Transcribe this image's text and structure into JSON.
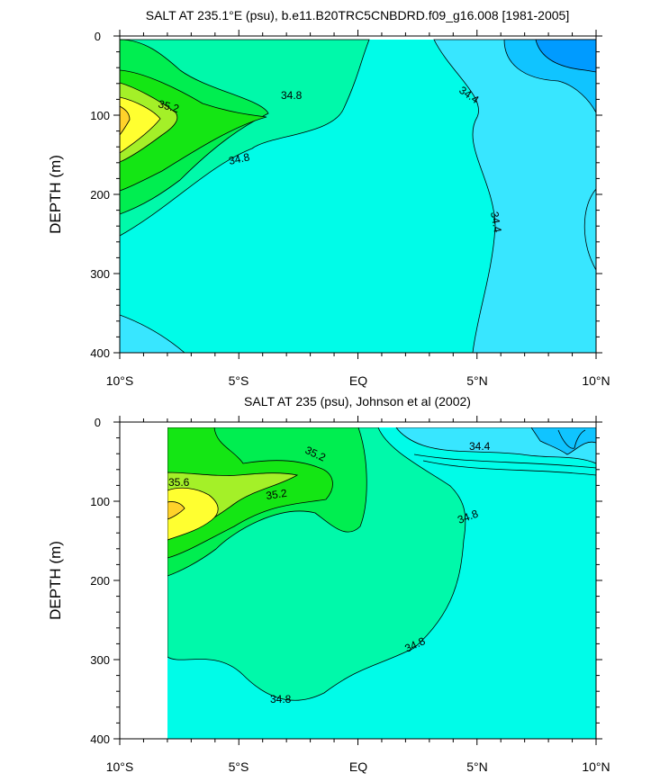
{
  "figure": {
    "panels": [
      {
        "title": "SALT AT 235.1°E (psu), b.e11.B20TRC5CNBDRD.f09_g16.008 [1981-2005]",
        "ylabel": "DEPTH (m)",
        "xticks": [
          "10°S",
          "5°S",
          "EQ",
          "5°N",
          "10°N"
        ],
        "yticks": [
          "0",
          "100",
          "200",
          "300",
          "400"
        ],
        "contour_labels": [
          "35.2",
          "34.8",
          "34.8",
          "34.4",
          "34.4"
        ]
      },
      {
        "title": "SALT AT 235 (psu), Johnson et al (2002)",
        "ylabel": "DEPTH (m)",
        "xticks": [
          "10°S",
          "5°S",
          "EQ",
          "5°N",
          "10°N"
        ],
        "yticks": [
          "0",
          "100",
          "200",
          "300",
          "400"
        ],
        "contour_labels": [
          "35.6",
          "35.2",
          "35.2",
          "34.8",
          "34.8",
          "34.4",
          "34.8"
        ]
      }
    ]
  },
  "chart_data": [
    {
      "type": "contour",
      "title": "SALT AT 235.1°E (psu), b.e11.B20TRC5CNBDRD.f09_g16.008 [1981-2005]",
      "xlabel": "",
      "ylabel": "DEPTH (m)",
      "xlim": [
        -10,
        10
      ],
      "ylim": [
        400,
        0
      ],
      "contour_interval": 0.2,
      "labeled_levels": [
        35.2,
        34.8,
        34.4
      ],
      "colors": {
        "34.0": "#009bff",
        "34.2": "#10c4ff",
        "34.4": "#38e6ff",
        "34.6": "#00fce8",
        "34.8": "#00f9aa",
        "35.0": "#00ee50",
        "35.2": "#14e614",
        "35.4": "#a4f028",
        "35.6": "#ffff30",
        "35.8": "#ffd22a"
      },
      "features": [
        {
          "kind": "salinity_max_core",
          "x": -10,
          "depth": 125,
          "max_value": 35.8
        },
        {
          "kind": "fresh_surface_pool",
          "x": 9.5,
          "depth": 20,
          "min_value": 34.0
        }
      ]
    },
    {
      "type": "contour",
      "title": "SALT AT 235 (psu), Johnson et al (2002)",
      "xlabel": "",
      "ylabel": "DEPTH (m)",
      "xlim": [
        -10,
        10
      ],
      "ylim": [
        400,
        0
      ],
      "data_x_range": [
        -8,
        10
      ],
      "contour_interval": 0.2,
      "labeled_levels": [
        35.6,
        35.2,
        34.8,
        34.4
      ],
      "features": [
        {
          "kind": "salinity_max_core",
          "x": -7.5,
          "depth": 105,
          "max_value": 35.9
        },
        {
          "kind": "fresh_surface_pool",
          "x": 9,
          "depth": 20,
          "min_value": 34.2
        }
      ]
    }
  ]
}
